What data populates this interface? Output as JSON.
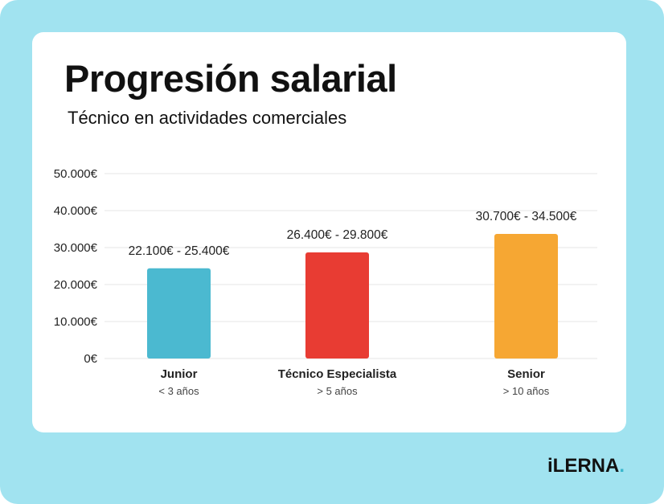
{
  "chart_data": {
    "type": "bar",
    "title": "Progresión salarial",
    "subtitle": "Técnico en actividades comerciales",
    "categories": [
      "Junior",
      "Técnico Especialista",
      "Senior"
    ],
    "category_sublabels": [
      "< 3 años",
      "> 5 años",
      "> 10 años"
    ],
    "ranges": [
      [
        22100,
        25400
      ],
      [
        26400,
        29800
      ],
      [
        30700,
        34500
      ]
    ],
    "values": [
      24400,
      28700,
      33700
    ],
    "data_labels": [
      "22.100€ - 25.400€",
      "26.400€ - 29.800€",
      "30.700€ - 34.500€"
    ],
    "colors": [
      "#4bb9d0",
      "#e83c33",
      "#f6a733"
    ],
    "yticks": [
      0,
      10000,
      20000,
      30000,
      40000,
      50000
    ],
    "ytick_labels": [
      "0€",
      "10.000€",
      "20.000€",
      "30.000€",
      "40.000€",
      "50.000€"
    ],
    "ylim": [
      0,
      50000
    ],
    "grid": true,
    "xlabel": "",
    "ylabel": ""
  },
  "brand": {
    "logo": "iLERNA."
  }
}
